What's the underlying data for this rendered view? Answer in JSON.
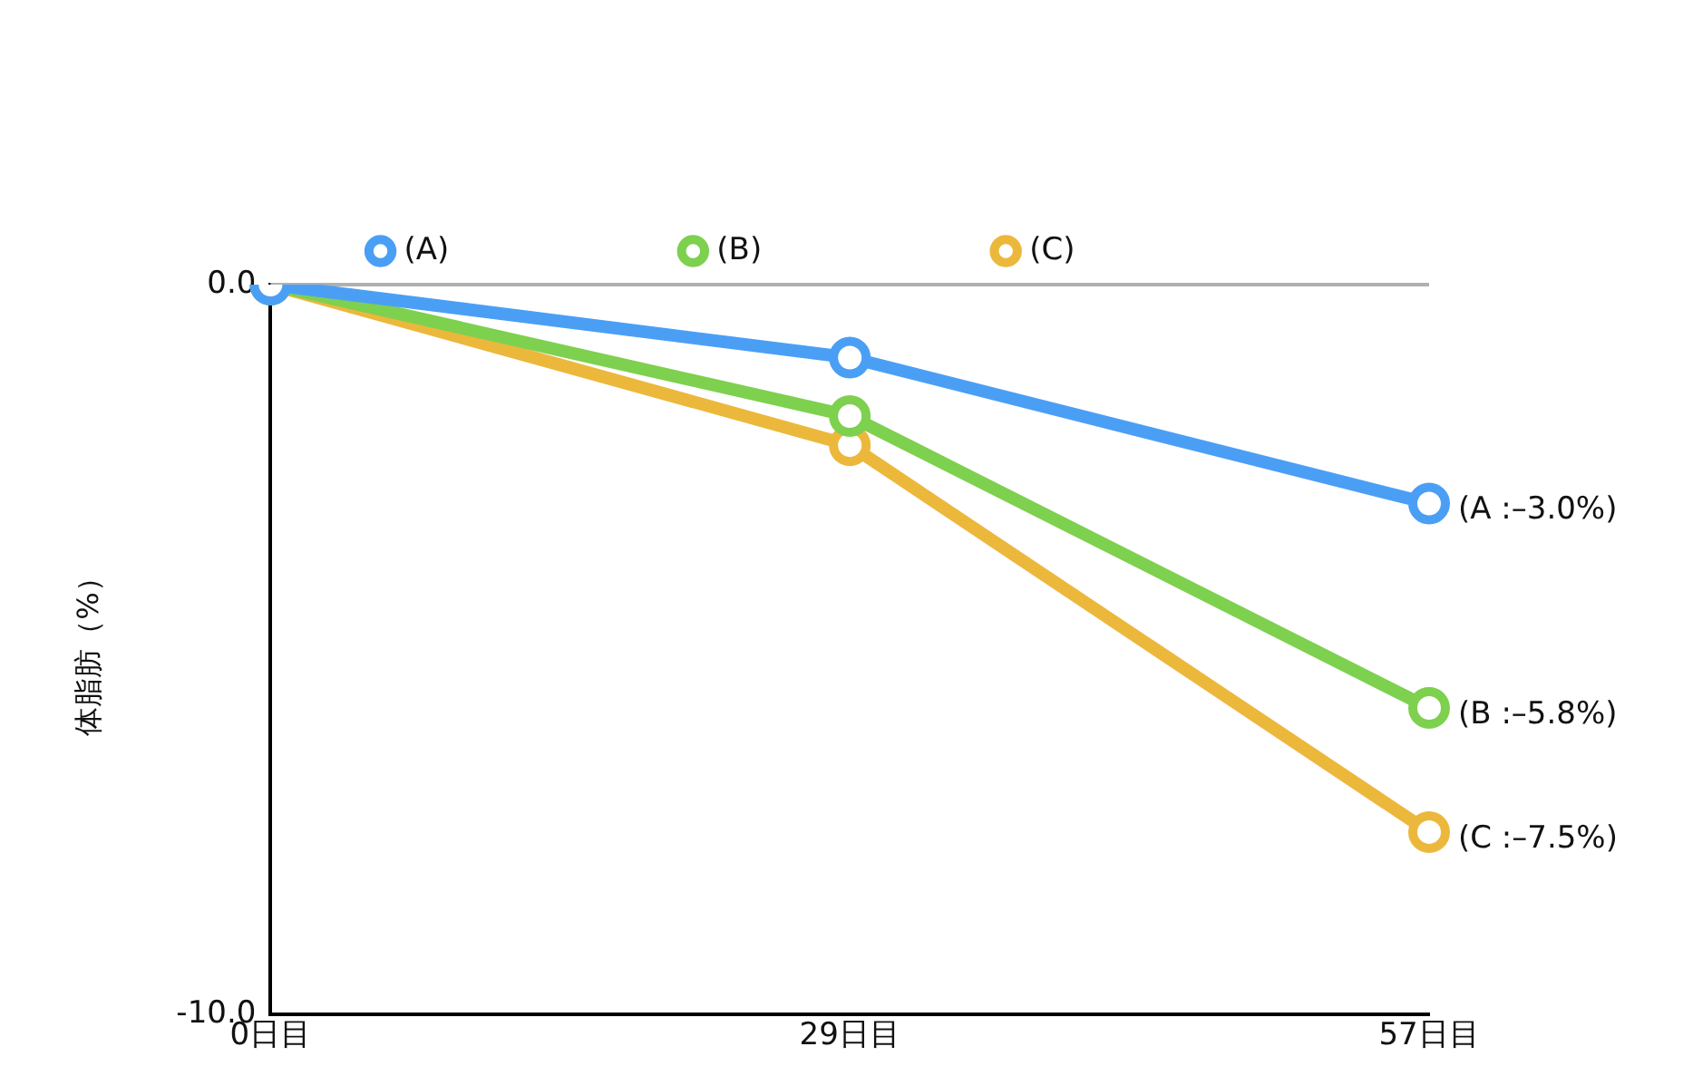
{
  "chart_data": {
    "type": "line",
    "ylabel": "体脂肪（%）",
    "categories": [
      "0日目",
      "29日目",
      "57日目"
    ],
    "series": [
      {
        "name": "(A)",
        "color": "#4a9ff5",
        "values": [
          0.0,
          -1.0,
          -3.0
        ],
        "value_labels": [
          null,
          null,
          "(A :–3.0%)"
        ]
      },
      {
        "name": "(B)",
        "color": "#7ed04f",
        "values": [
          0.0,
          -1.8,
          -5.8
        ],
        "value_labels": [
          null,
          null,
          "(B :–5.8%)"
        ]
      },
      {
        "name": "(C)",
        "color": "#ecb83c",
        "values": [
          0.0,
          -2.2,
          -7.5
        ],
        "value_labels": [
          null,
          null,
          "(C :–7.5%)"
        ]
      }
    ],
    "ylim": [
      -10,
      0
    ],
    "yticks": [
      {
        "value": 0,
        "label": "0.0"
      },
      {
        "value": -10,
        "label": "-10.0"
      }
    ],
    "ref_lines": [
      {
        "axis": "y",
        "value": 0,
        "color": "#b0b0b0"
      }
    ],
    "legend": "top",
    "marker": "circle",
    "line_style": "solid"
  }
}
